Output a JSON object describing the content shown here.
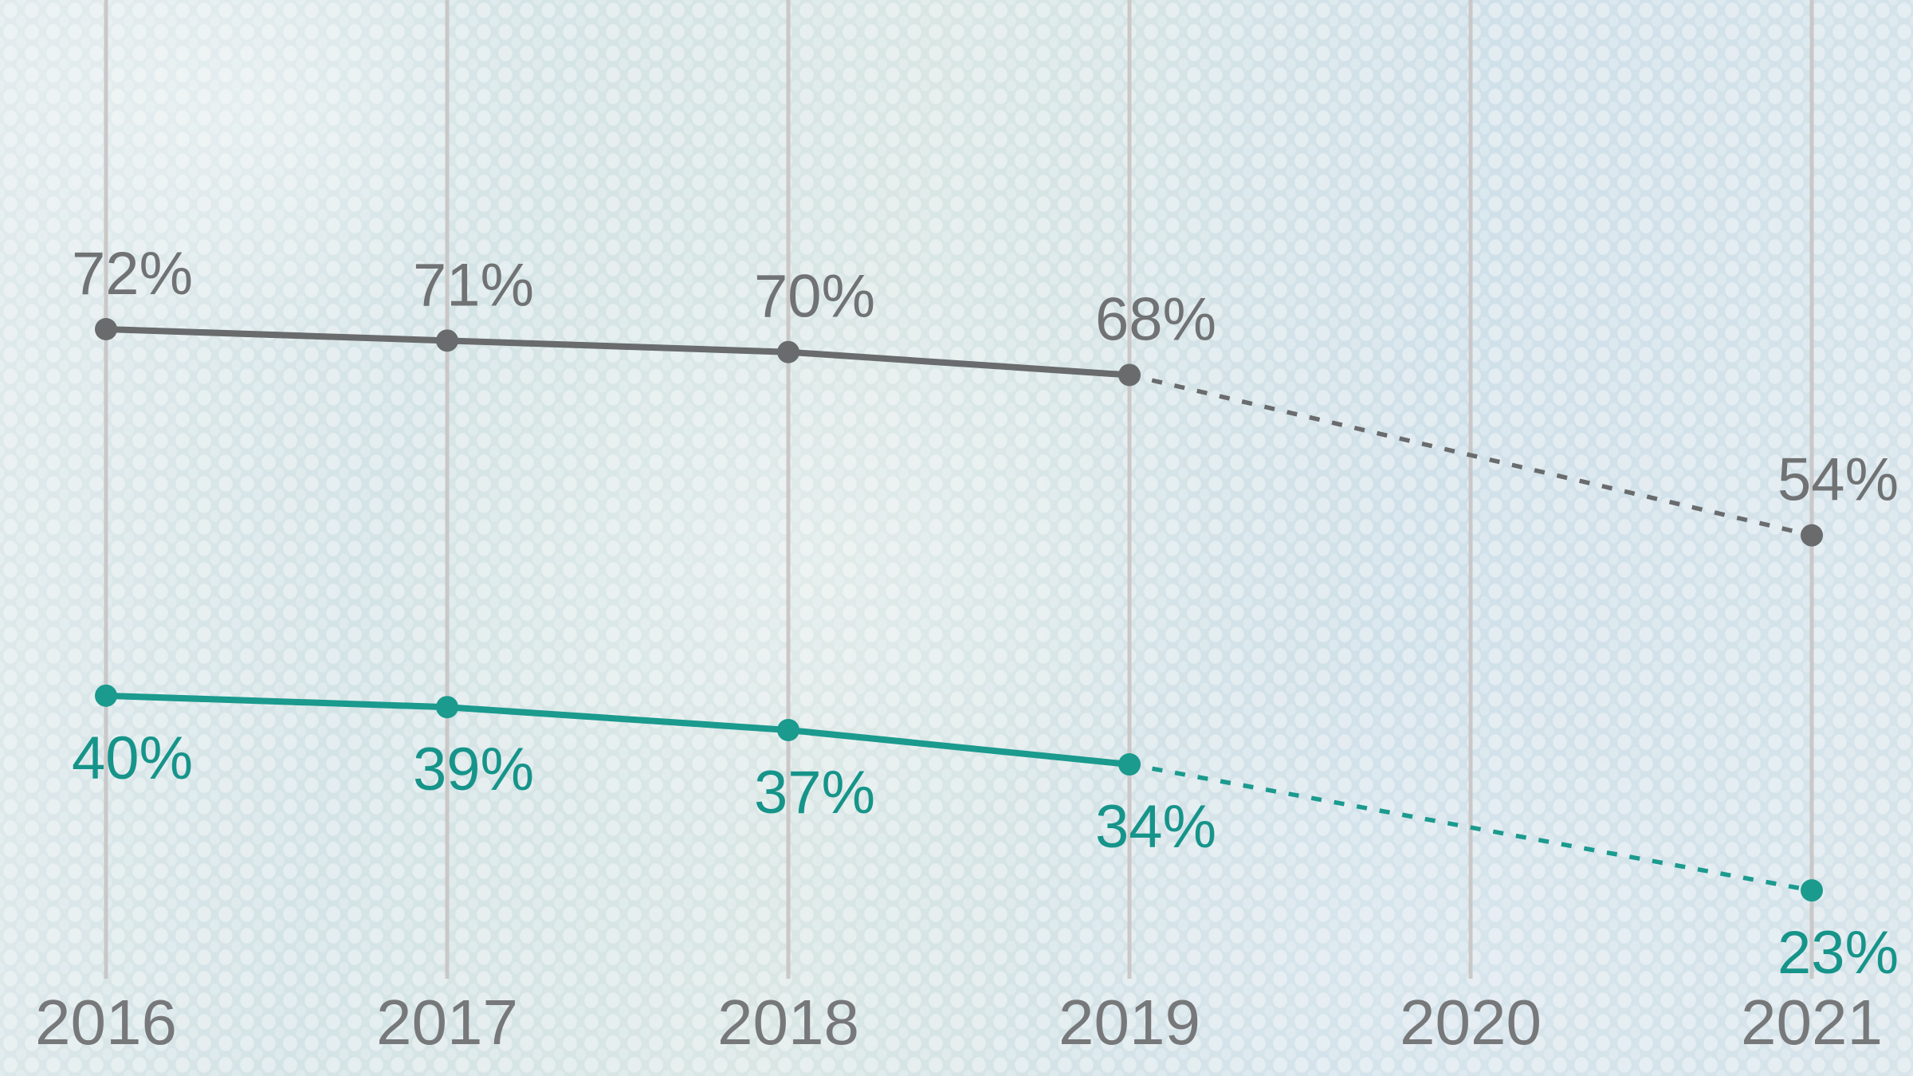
{
  "chart_data": {
    "type": "line",
    "title": "",
    "xlabel": "",
    "ylabel": "",
    "y_unit": "%",
    "categories": [
      "2016",
      "2017",
      "2018",
      "2019",
      "2020",
      "2021"
    ],
    "x_axis": {
      "tick_labels": [
        "2016",
        "2017",
        "2018",
        "2019",
        "2020",
        "2021"
      ],
      "label_color": "#77787a"
    },
    "grid": "vertical gridlines at each year, no horizontal gridlines, no y-axis",
    "gridline_color": "#c8c5c4",
    "legend_position": "none",
    "series": [
      {
        "name": "top-gray-series",
        "color": "#696b6d",
        "label_color": "#707274",
        "values": [
          72,
          71,
          70,
          68,
          null,
          54
        ],
        "point_labels": [
          "72%",
          "71%",
          "70%",
          "68%",
          null,
          "54%"
        ],
        "label_position": "above",
        "dotted_from_index": 3
      },
      {
        "name": "bottom-teal-series",
        "color": "#1b9a8e",
        "label_color": "#16948a",
        "values": [
          40,
          39,
          37,
          34,
          null,
          23
        ],
        "point_labels": [
          "40%",
          "39%",
          "37%",
          "34%",
          null,
          "23%"
        ],
        "label_position": "below",
        "dotted_from_index": 3
      }
    ]
  }
}
